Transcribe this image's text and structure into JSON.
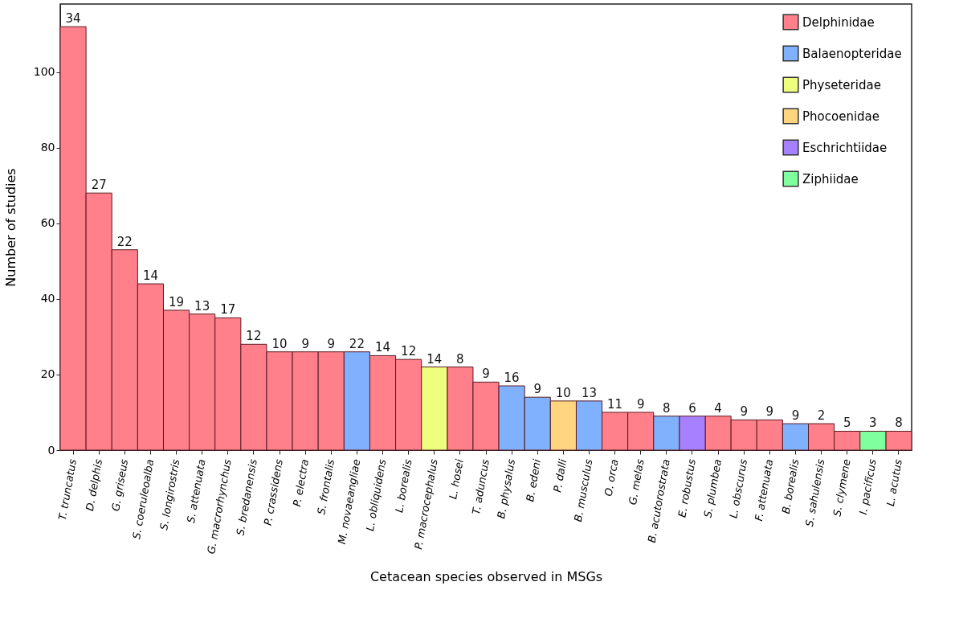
{
  "chart_data": {
    "type": "bar",
    "xlabel": "Cetacean species observed in MSGs",
    "ylabel": "Number of studies",
    "categories": [
      "T. truncatus",
      "D. delphis",
      "G. griseus",
      "S. coeruleoalba",
      "S. longirostris",
      "S. attenuata",
      "G. macrorhynchus",
      "S. bredanensis",
      "P. crassidens",
      "P. electra",
      "S. frontalis",
      "M. novaeangliae",
      "L. obliquidens",
      "L. borealis",
      "P. macrocephalus",
      "L. hosei",
      "T. aduncus",
      "B. physalus",
      "B. edeni",
      "P. dalli",
      "B. musculus",
      "O. orca",
      "G. melas",
      "B. acutorostrata",
      "E. robustus",
      "S. plumbea",
      "L. obscurus",
      "F. attenuata",
      "B. borealis",
      "S. sahulensis",
      "S. clymene",
      "I. pacificus",
      "L. acutus"
    ],
    "series": [
      {
        "name": "Delphinidae",
        "color": "#ff7f8a",
        "values": [
          112,
          68,
          53,
          44,
          37,
          36,
          35,
          28,
          26,
          26,
          26,
          null,
          25,
          24,
          null,
          22,
          18,
          null,
          null,
          null,
          null,
          10,
          10,
          null,
          null,
          9,
          8,
          8,
          null,
          7,
          5,
          null,
          5
        ]
      },
      {
        "name": "Balaenopteridae",
        "color": "#80b1ff",
        "values": [
          null,
          null,
          null,
          null,
          null,
          null,
          null,
          null,
          null,
          null,
          null,
          26,
          null,
          null,
          null,
          null,
          null,
          17,
          14,
          null,
          13,
          null,
          null,
          9,
          null,
          null,
          null,
          null,
          7,
          null,
          null,
          null,
          null
        ]
      },
      {
        "name": "Physeteridae",
        "color": "#eeff80",
        "values": [
          null,
          null,
          null,
          null,
          null,
          null,
          null,
          null,
          null,
          null,
          null,
          null,
          null,
          null,
          22,
          null,
          null,
          null,
          null,
          null,
          null,
          null,
          null,
          null,
          null,
          null,
          null,
          null,
          null,
          null,
          null,
          null,
          null
        ]
      },
      {
        "name": "Phocoenidae",
        "color": "#ffd580",
        "values": [
          null,
          null,
          null,
          null,
          null,
          null,
          null,
          null,
          null,
          null,
          null,
          null,
          null,
          null,
          null,
          null,
          null,
          null,
          null,
          13,
          null,
          null,
          null,
          null,
          null,
          null,
          null,
          null,
          null,
          null,
          null,
          null,
          null
        ]
      },
      {
        "name": "Eschrichtiidae",
        "color": "#a680ff",
        "values": [
          null,
          null,
          null,
          null,
          null,
          null,
          null,
          null,
          null,
          null,
          null,
          null,
          null,
          null,
          null,
          null,
          null,
          null,
          null,
          null,
          null,
          null,
          null,
          null,
          9,
          null,
          null,
          null,
          null,
          null,
          null,
          null,
          null
        ]
      },
      {
        "name": "Ziphiidae",
        "color": "#80ff9f",
        "values": [
          null,
          null,
          null,
          null,
          null,
          null,
          null,
          null,
          null,
          null,
          null,
          null,
          null,
          null,
          null,
          null,
          null,
          null,
          null,
          null,
          null,
          null,
          null,
          null,
          null,
          null,
          null,
          null,
          null,
          null,
          null,
          5,
          null
        ]
      }
    ],
    "value_labels": [
      "34",
      "27",
      "22",
      "14",
      "19",
      "13",
      "17",
      "12",
      "10",
      "9",
      "9",
      "22",
      "14",
      "12",
      "14",
      "8",
      "9",
      "16",
      "9",
      "10",
      "13",
      "11",
      "9",
      "8",
      "6",
      "4",
      "9",
      "9",
      "9",
      "2",
      "5",
      "3",
      "8"
    ],
    "ylim": [
      0,
      118
    ],
    "yticks": [
      0,
      20,
      40,
      60,
      80,
      100
    ],
    "grid": false,
    "legend": "top right"
  }
}
